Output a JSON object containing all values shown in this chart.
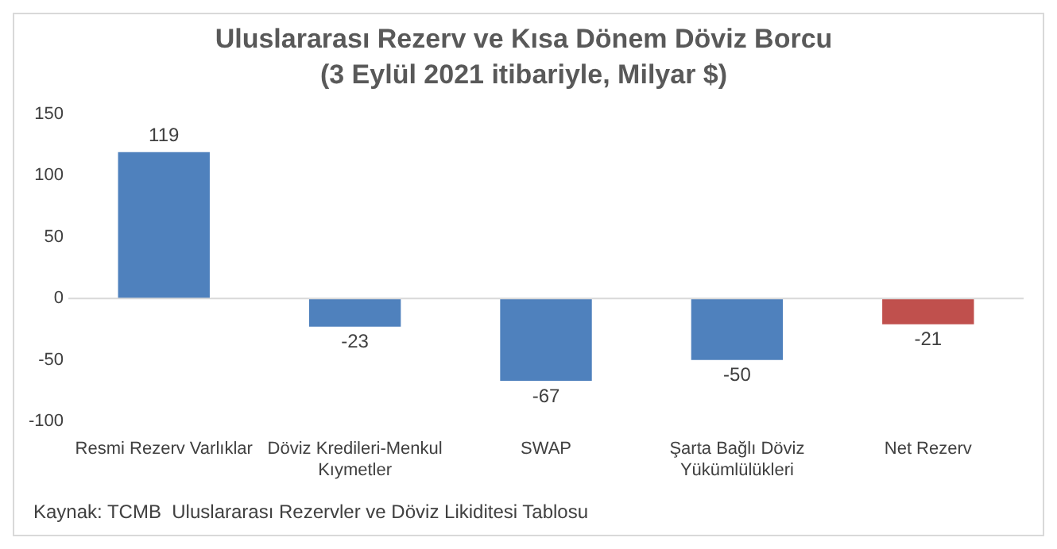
{
  "chart_data": {
    "type": "bar",
    "title": "Uluslararası Rezerv ve Kısa Dönem Döviz Borcu",
    "subtitle": "(3 Eylül 2021 itibariyle, Milyar $)",
    "categories": [
      "Resmi Rezerv Varlıklar",
      "Döviz Kredileri-Menkul Kıymetler",
      "SWAP",
      "Şarta Bağlı Döviz Yükümlülükleri",
      "Net Rezerv"
    ],
    "values": [
      119,
      -23,
      -67,
      -50,
      -21
    ],
    "colors": [
      "#4f81bd",
      "#4f81bd",
      "#4f81bd",
      "#4f81bd",
      "#c0504d"
    ],
    "ylim": [
      -100,
      150
    ],
    "yticks": [
      -100,
      -50,
      0,
      50,
      100,
      150
    ],
    "data_labels": true,
    "grid": false,
    "legend": false,
    "ref_lines": [
      {
        "axis": "y",
        "value": 0,
        "color": "#d9d9d9"
      }
    ],
    "annotations": [
      "Kaynak: TCMB  Uluslararası Rezervler ve Döviz Likiditesi Tablosu"
    ]
  }
}
